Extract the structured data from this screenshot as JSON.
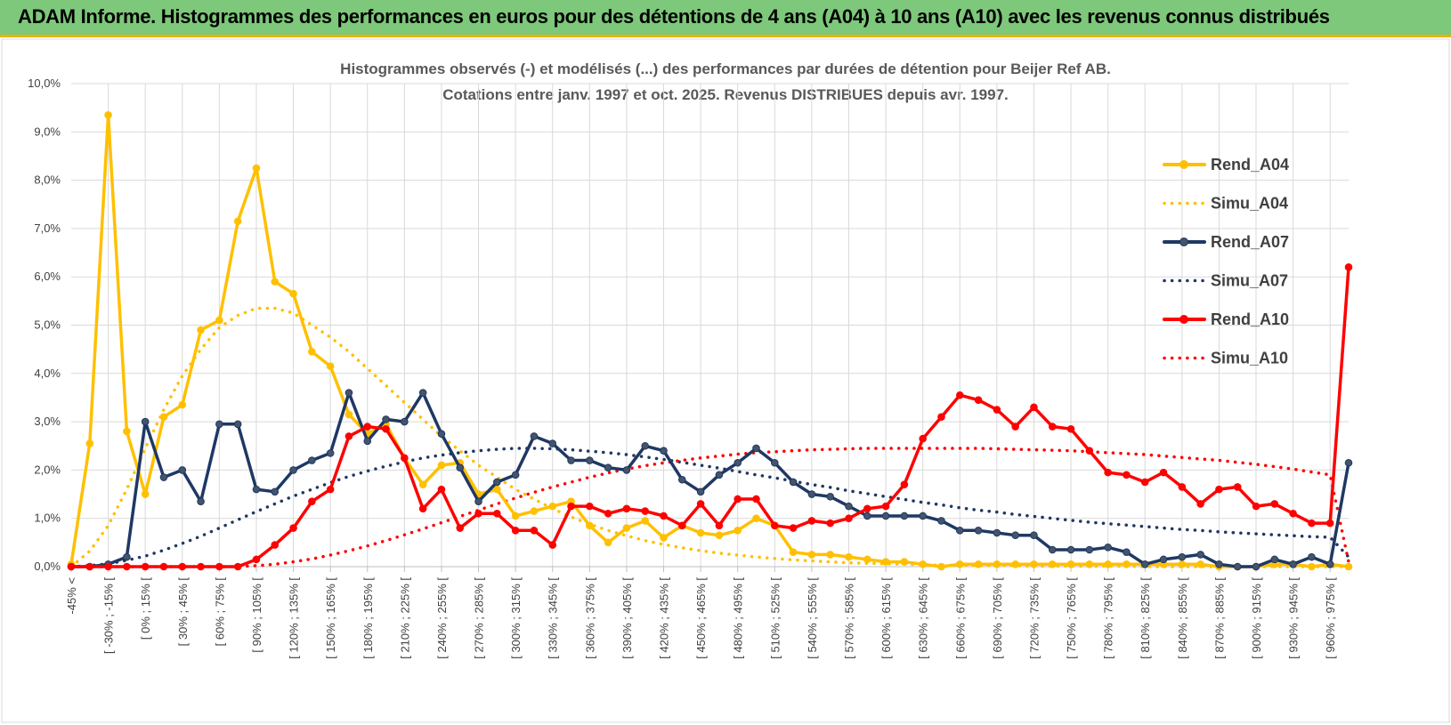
{
  "header": {
    "title": "ADAM Informe. Histogrammes des performances en euros pour des détentions de 4 ans (A04) à 10 ans (A10) avec les revenus connus distribués"
  },
  "chart_data": {
    "type": "line",
    "title": "Histogrammes observés (-) et modélisés (...) des performances par durées de détention pour Beijer Ref AB.",
    "subtitle": "Cotations entre janv. 1997 et oct. 2025. Revenus DISTRIBUES depuis avr. 1997.",
    "xlabel": "",
    "ylabel": "",
    "ylim": [
      0,
      10
    ],
    "yticks": [
      "0,0%",
      "1,0%",
      "2,0%",
      "3,0%",
      "4,0%",
      "5,0%",
      "6,0%",
      "7,0%",
      "8,0%",
      "9,0%",
      "10,0%"
    ],
    "grid": true,
    "legend_position": "right",
    "tick_labels": [
      "-45% <",
      "[ -30% ; -15% [",
      "[ 0% ; 15% [",
      "[ 30% ; 45% [",
      "[ 60% ; 75% [",
      "[ 90% ; 105% [",
      "[ 120% ; 135% [",
      "[ 150% ; 165% [",
      "[ 180% ; 195% [",
      "[ 210% ; 225% [",
      "[ 240% ; 255% [",
      "[ 270% ; 285% [",
      "[ 300% ; 315% [",
      "[ 330% ; 345% [",
      "[ 360% ; 375% [",
      "[ 390% ; 405% [",
      "[ 420% ; 435% [",
      "[ 450% ; 465% [",
      "[ 480% ; 495% [",
      "[ 510% ; 525% [",
      "[ 540% ; 555% [",
      "[ 570% ; 585% [",
      "[ 600% ; 615% [",
      "[ 630% ; 645% [",
      "[ 660% ; 675% [",
      "[ 690% ; 705% [",
      "[ 720% ; 735% [",
      "[ 750% ; 765% [",
      "[ 780% ; 795% [",
      "[ 810% ; 825% [",
      "[ 840% ; 855% [",
      "[ 870% ; 885% [",
      "[ 900% ; 915% [",
      "[ 930% ; 945% [",
      "[ 960% ; 975% ["
    ],
    "n_categories": 70,
    "series": [
      {
        "name": "Rend_A04",
        "style": "solid",
        "markers": true,
        "color": "#ffc000",
        "values": [
          0.05,
          2.55,
          9.35,
          2.8,
          1.5,
          3.1,
          3.35,
          4.9,
          5.1,
          7.15,
          8.25,
          5.9,
          5.65,
          4.45,
          4.15,
          3.15,
          2.75,
          2.95,
          2.25,
          1.7,
          2.1,
          2.15,
          1.5,
          1.6,
          1.05,
          1.15,
          1.25,
          1.35,
          0.85,
          0.5,
          0.8,
          0.95,
          0.6,
          0.85,
          0.7,
          0.65,
          0.75,
          1.0,
          0.85,
          0.3,
          0.25,
          0.25,
          0.2,
          0.15,
          0.1,
          0.1,
          0.05,
          0.0,
          0.05,
          0.05,
          0.05,
          0.05,
          0.05,
          0.05,
          0.05,
          0.05,
          0.05,
          0.05,
          0.05,
          0.05,
          0.05,
          0.05,
          0.0,
          0.0,
          0.0,
          0.05,
          0.05,
          0.0,
          0.05,
          0.0
        ]
      },
      {
        "name": "Simu_A04",
        "style": "dotted",
        "markers": false,
        "color": "#ffc000",
        "values": [
          0.0,
          0.32,
          0.85,
          1.6,
          2.45,
          3.25,
          3.95,
          4.5,
          4.95,
          5.2,
          5.35,
          5.35,
          5.25,
          5.0,
          4.75,
          4.45,
          4.1,
          3.75,
          3.4,
          3.05,
          2.7,
          2.4,
          2.1,
          1.85,
          1.6,
          1.4,
          1.2,
          1.03,
          0.88,
          0.75,
          0.64,
          0.54,
          0.46,
          0.39,
          0.33,
          0.28,
          0.24,
          0.2,
          0.17,
          0.14,
          0.12,
          0.1,
          0.08,
          0.07,
          0.06,
          0.05,
          0.04,
          0.03,
          0.03,
          0.02,
          0.02,
          0.02,
          0.01,
          0.01,
          0.01,
          0.01,
          0.01,
          0.01,
          0.0,
          0.0,
          0.0,
          0.0,
          0.0,
          0.0,
          0.0,
          0.0,
          0.0,
          0.0,
          0.0,
          0.0
        ]
      },
      {
        "name": "Rend_A07",
        "style": "solid",
        "markers": true,
        "color": "#1f3864",
        "values": [
          0.0,
          0.0,
          0.05,
          0.2,
          3.0,
          1.85,
          2.0,
          1.35,
          2.95,
          2.95,
          1.6,
          1.55,
          2.0,
          2.2,
          2.35,
          3.6,
          2.6,
          3.05,
          3.0,
          3.6,
          2.75,
          2.05,
          1.35,
          1.75,
          1.9,
          2.7,
          2.55,
          2.2,
          2.2,
          2.05,
          2.0,
          2.5,
          2.4,
          1.8,
          1.55,
          1.9,
          2.15,
          2.45,
          2.15,
          1.75,
          1.5,
          1.45,
          1.25,
          1.05,
          1.05,
          1.05,
          1.05,
          0.95,
          0.75,
          0.75,
          0.7,
          0.65,
          0.65,
          0.35,
          0.35,
          0.35,
          0.4,
          0.3,
          0.05,
          0.15,
          0.2,
          0.25,
          0.05,
          0.0,
          0.0,
          0.15,
          0.05,
          0.2,
          0.05,
          2.15
        ]
      },
      {
        "name": "Simu_A07",
        "style": "dotted",
        "markers": false,
        "color": "#1f3864",
        "values": [
          0.0,
          0.02,
          0.06,
          0.13,
          0.22,
          0.34,
          0.48,
          0.63,
          0.8,
          0.97,
          1.14,
          1.3,
          1.46,
          1.6,
          1.74,
          1.87,
          1.98,
          2.08,
          2.17,
          2.25,
          2.31,
          2.36,
          2.4,
          2.43,
          2.45,
          2.45,
          2.44,
          2.42,
          2.39,
          2.36,
          2.32,
          2.27,
          2.22,
          2.16,
          2.1,
          2.04,
          1.97,
          1.9,
          1.84,
          1.77,
          1.7,
          1.64,
          1.57,
          1.51,
          1.45,
          1.39,
          1.33,
          1.28,
          1.22,
          1.17,
          1.13,
          1.08,
          1.04,
          1.0,
          0.96,
          0.92,
          0.89,
          0.86,
          0.83,
          0.8,
          0.77,
          0.75,
          0.72,
          0.7,
          0.68,
          0.66,
          0.64,
          0.62,
          0.61,
          0.2
        ]
      },
      {
        "name": "Rend_A10",
        "style": "solid",
        "markers": true,
        "color": "#ff0000",
        "values": [
          0.0,
          0.0,
          0.0,
          0.0,
          0.0,
          0.0,
          0.0,
          0.0,
          0.0,
          0.0,
          0.15,
          0.45,
          0.8,
          1.35,
          1.6,
          2.7,
          2.9,
          2.85,
          2.25,
          1.2,
          1.6,
          0.8,
          1.1,
          1.1,
          0.75,
          0.75,
          0.45,
          1.25,
          1.25,
          1.1,
          1.2,
          1.15,
          1.05,
          0.85,
          1.3,
          0.85,
          1.4,
          1.4,
          0.85,
          0.8,
          0.95,
          0.9,
          1.0,
          1.2,
          1.25,
          1.7,
          2.65,
          3.1,
          3.55,
          3.45,
          3.25,
          2.9,
          3.3,
          2.9,
          2.85,
          2.4,
          1.95,
          1.9,
          1.75,
          1.95,
          1.65,
          1.3,
          1.6,
          1.65,
          1.25,
          1.3,
          1.1,
          0.9,
          0.9,
          6.2
        ]
      },
      {
        "name": "Simu_A10",
        "style": "dotted",
        "markers": false,
        "color": "#ff0000",
        "values": [
          0.0,
          0.0,
          0.0,
          0.0,
          0.0,
          0.0,
          0.0,
          0.0,
          0.0,
          0.0,
          0.02,
          0.05,
          0.1,
          0.16,
          0.24,
          0.33,
          0.43,
          0.54,
          0.66,
          0.78,
          0.91,
          1.04,
          1.17,
          1.3,
          1.42,
          1.54,
          1.65,
          1.75,
          1.85,
          1.94,
          2.02,
          2.09,
          2.15,
          2.2,
          2.25,
          2.29,
          2.33,
          2.36,
          2.38,
          2.4,
          2.42,
          2.43,
          2.44,
          2.45,
          2.45,
          2.45,
          2.45,
          2.45,
          2.45,
          2.45,
          2.44,
          2.43,
          2.42,
          2.41,
          2.4,
          2.38,
          2.36,
          2.34,
          2.32,
          2.29,
          2.26,
          2.23,
          2.2,
          2.16,
          2.12,
          2.07,
          2.02,
          1.96,
          1.9,
          0.1
        ]
      }
    ]
  }
}
